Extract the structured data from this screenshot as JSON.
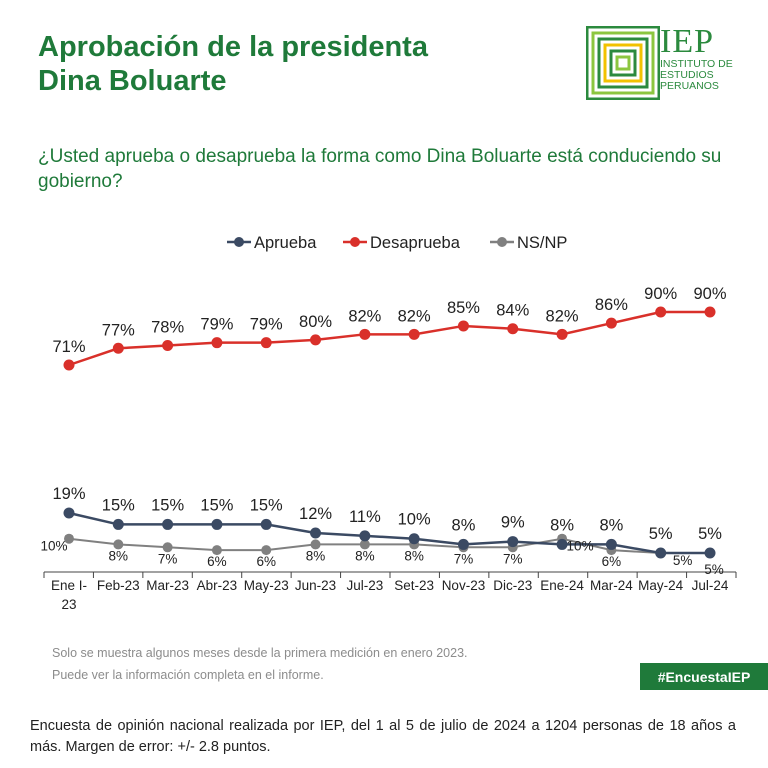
{
  "header": {
    "title_line1": "Aprobación de la presidenta",
    "title_line2": "Dina Boluarte",
    "question": "¿Usted aprueba o desaprueba la forma como Dina Boluarte está conduciendo su gobierno?"
  },
  "logo": {
    "name": "IEP",
    "subtitle_line1": "INSTITUTO DE",
    "subtitle_line2": "ESTUDIOS",
    "subtitle_line3": "PERUANOS",
    "icon": "iep-logo-icon",
    "color": "#2b8a3e"
  },
  "chart_data": {
    "type": "line",
    "categories": [
      "Ene I-23",
      "Feb-23",
      "Mar-23",
      "Abr-23",
      "May-23",
      "Jun-23",
      "Jul-23",
      "Set-23",
      "Nov-23",
      "Dic-23",
      "Ene-24",
      "Mar-24",
      "May-24",
      "Jul-24"
    ],
    "series": [
      {
        "name": "Aprueba",
        "color": "#3b4a63",
        "values": [
          19,
          15,
          15,
          15,
          15,
          12,
          11,
          10,
          8,
          9,
          8,
          8,
          5,
          5
        ]
      },
      {
        "name": "Desaprueba",
        "color": "#d9302a",
        "values": [
          71,
          77,
          78,
          79,
          79,
          80,
          82,
          82,
          85,
          84,
          82,
          86,
          90,
          90
        ]
      },
      {
        "name": "NS/NP",
        "color": "#808080",
        "values": [
          10,
          8,
          7,
          6,
          6,
          8,
          8,
          8,
          7,
          7,
          10,
          6,
          5,
          5
        ]
      }
    ],
    "value_suffix": "%",
    "legend_position": "top-center",
    "grid": false,
    "ylim": [
      0,
      100
    ]
  },
  "footnote": {
    "line1": "Solo se muestra algunos meses desde la primera medición en enero 2023.",
    "line2": "Puede ver la información completa en el informe."
  },
  "hashtag": "#EncuestaIEP",
  "source": "Encuesta de opinión nacional realizada por IEP, del 1 al 5 de julio de 2024 a 1204 personas de 18 años a más. Margen de error: +/- 2.8 puntos.",
  "colors": {
    "brand_green": "#1f7a3a"
  }
}
